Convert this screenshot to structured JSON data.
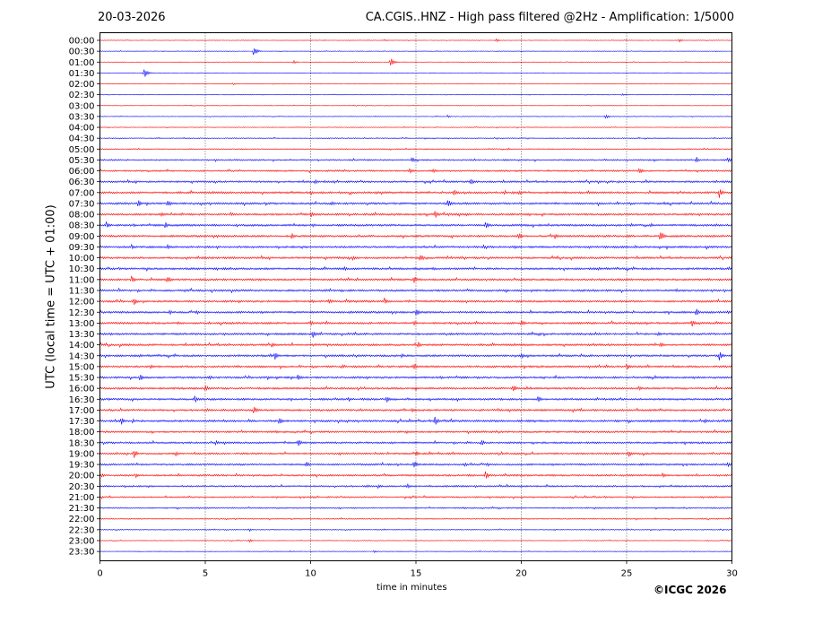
{
  "header": {
    "date": "20-03-2026",
    "title": "CA.CGIS..HNZ - High pass filtered @2Hz - Amplification: 1/5000"
  },
  "footer": {
    "copyright": "©ICGC 2026"
  },
  "chart_data": {
    "type": "line",
    "subtype": "helicorder",
    "xlabel": "time in minutes",
    "ylabel": "UTC (local time = UTC + 01:00)",
    "xlim": [
      0,
      30
    ],
    "x_ticks": [
      0,
      5,
      10,
      15,
      20,
      25,
      30
    ],
    "vertical_gridlines": [
      5,
      10,
      15,
      20,
      25
    ],
    "grid": "dotted vertical lines",
    "trace_colors": [
      "#ff0000",
      "#0000ff"
    ],
    "rows": [
      "00:00",
      "00:30",
      "01:00",
      "01:30",
      "02:00",
      "02:30",
      "03:00",
      "03:30",
      "04:00",
      "04:30",
      "05:00",
      "05:30",
      "06:00",
      "06:30",
      "07:00",
      "07:30",
      "08:00",
      "08:30",
      "09:00",
      "09:30",
      "10:00",
      "10:30",
      "11:00",
      "11:30",
      "12:00",
      "12:30",
      "13:00",
      "13:30",
      "14:00",
      "14:30",
      "15:00",
      "15:30",
      "16:00",
      "16:30",
      "17:00",
      "17:30",
      "18:00",
      "18:30",
      "19:00",
      "19:30",
      "20:00",
      "20:30",
      "21:00",
      "21:30",
      "22:00",
      "22:30",
      "23:00",
      "23:30"
    ],
    "noise_level": [
      0.3,
      0.3,
      0.3,
      0.3,
      0.3,
      0.3,
      0.3,
      0.35,
      0.4,
      0.5,
      0.6,
      0.8,
      0.9,
      1.0,
      1.1,
      1.1,
      1.1,
      1.1,
      1.1,
      1.1,
      1.1,
      1.1,
      1.1,
      1.1,
      1.1,
      1.1,
      1.1,
      1.1,
      1.1,
      1.1,
      1.1,
      1.1,
      1.1,
      1.1,
      1.1,
      1.1,
      1.0,
      1.0,
      1.0,
      1.0,
      1.0,
      0.9,
      0.8,
      0.7,
      0.6,
      0.5,
      0.4,
      0.4
    ],
    "events": [
      {
        "row": "00:00",
        "t": 18.8,
        "amp": 2
      },
      {
        "row": "00:00",
        "t": 27.5,
        "amp": 2
      },
      {
        "row": "00:00",
        "t": 13.5,
        "amp": 1.2
      },
      {
        "row": "00:30",
        "t": 7.3,
        "amp": 6
      },
      {
        "row": "01:00",
        "t": 13.8,
        "amp": 6
      },
      {
        "row": "01:00",
        "t": 9.2,
        "amp": 2
      },
      {
        "row": "01:30",
        "t": 2.1,
        "amp": 6
      },
      {
        "row": "02:00",
        "t": 6.3,
        "amp": 1.5
      },
      {
        "row": "02:30",
        "t": 24.8,
        "amp": 1.5
      },
      {
        "row": "03:30",
        "t": 24.0,
        "amp": 3
      },
      {
        "row": "03:30",
        "t": 16.5,
        "amp": 1.5
      },
      {
        "row": "05:30",
        "t": 14.8,
        "amp": 4
      },
      {
        "row": "05:30",
        "t": 28.3,
        "amp": 4
      },
      {
        "row": "05:30",
        "t": 29.8,
        "amp": 4
      },
      {
        "row": "06:00",
        "t": 14.7,
        "amp": 4
      },
      {
        "row": "06:00",
        "t": 25.6,
        "amp": 4
      },
      {
        "row": "06:00",
        "t": 15.8,
        "amp": 3
      },
      {
        "row": "06:30",
        "t": 17.6,
        "amp": 4
      },
      {
        "row": "06:30",
        "t": 10.2,
        "amp": 3
      },
      {
        "row": "07:00",
        "t": 16.8,
        "amp": 5
      },
      {
        "row": "07:00",
        "t": 29.4,
        "amp": 6
      },
      {
        "row": "07:00",
        "t": 10.0,
        "amp": 3
      },
      {
        "row": "07:00",
        "t": 19.9,
        "amp": 3
      },
      {
        "row": "07:30",
        "t": 1.8,
        "amp": 5
      },
      {
        "row": "07:30",
        "t": 3.2,
        "amp": 5
      },
      {
        "row": "07:30",
        "t": 16.5,
        "amp": 6
      },
      {
        "row": "07:30",
        "t": 11.0,
        "amp": 3
      },
      {
        "row": "08:00",
        "t": 15.9,
        "amp": 5
      },
      {
        "row": "08:00",
        "t": 10.0,
        "amp": 4
      },
      {
        "row": "08:00",
        "t": 6.2,
        "amp": 3
      },
      {
        "row": "08:00",
        "t": 2.9,
        "amp": 3
      },
      {
        "row": "08:30",
        "t": 18.3,
        "amp": 5
      },
      {
        "row": "08:30",
        "t": 0.3,
        "amp": 4
      },
      {
        "row": "08:30",
        "t": 3.1,
        "amp": 4
      },
      {
        "row": "08:30",
        "t": 10.1,
        "amp": 3
      },
      {
        "row": "09:00",
        "t": 26.6,
        "amp": 7
      },
      {
        "row": "09:00",
        "t": 21.6,
        "amp": 4
      },
      {
        "row": "09:00",
        "t": 9.1,
        "amp": 4
      },
      {
        "row": "09:00",
        "t": 19.9,
        "amp": 4
      },
      {
        "row": "09:30",
        "t": 1.5,
        "amp": 3
      },
      {
        "row": "09:30",
        "t": 18.2,
        "amp": 3
      },
      {
        "row": "09:30",
        "t": 3.2,
        "amp": 3
      },
      {
        "row": "10:00",
        "t": 15.2,
        "amp": 5
      },
      {
        "row": "10:00",
        "t": 12.0,
        "amp": 3
      },
      {
        "row": "10:30",
        "t": 15.8,
        "amp": 3
      },
      {
        "row": "10:30",
        "t": 11.6,
        "amp": 3
      },
      {
        "row": "11:00",
        "t": 1.5,
        "amp": 5
      },
      {
        "row": "11:00",
        "t": 3.2,
        "amp": 5
      },
      {
        "row": "11:00",
        "t": 14.9,
        "amp": 5
      },
      {
        "row": "12:00",
        "t": 1.6,
        "amp": 5
      },
      {
        "row": "12:00",
        "t": 13.5,
        "amp": 4
      },
      {
        "row": "12:00",
        "t": 10.9,
        "amp": 3
      },
      {
        "row": "12:30",
        "t": 15.0,
        "amp": 5
      },
      {
        "row": "12:30",
        "t": 28.3,
        "amp": 5
      },
      {
        "row": "12:30",
        "t": 3.3,
        "amp": 3
      },
      {
        "row": "12:30",
        "t": 29.8,
        "amp": 3
      },
      {
        "row": "13:00",
        "t": 20.0,
        "amp": 5
      },
      {
        "row": "13:00",
        "t": 28.1,
        "amp": 5
      },
      {
        "row": "13:00",
        "t": 14.9,
        "amp": 4
      },
      {
        "row": "13:00",
        "t": 10.0,
        "amp": 3
      },
      {
        "row": "13:30",
        "t": 10.1,
        "amp": 5
      },
      {
        "row": "13:30",
        "t": 26.5,
        "amp": 3
      },
      {
        "row": "14:00",
        "t": 15.1,
        "amp": 4
      },
      {
        "row": "14:00",
        "t": 26.6,
        "amp": 4
      },
      {
        "row": "14:00",
        "t": 8.2,
        "amp": 3
      },
      {
        "row": "14:30",
        "t": 29.4,
        "amp": 6
      },
      {
        "row": "14:30",
        "t": 8.3,
        "amp": 5
      },
      {
        "row": "14:30",
        "t": 20.0,
        "amp": 4
      },
      {
        "row": "14:30",
        "t": 14.3,
        "amp": 3
      },
      {
        "row": "15:00",
        "t": 14.9,
        "amp": 5
      },
      {
        "row": "15:00",
        "t": 25.0,
        "amp": 4
      },
      {
        "row": "15:00",
        "t": 2.4,
        "amp": 3
      },
      {
        "row": "15:00",
        "t": 11.5,
        "amp": 3
      },
      {
        "row": "15:30",
        "t": 1.9,
        "amp": 5
      },
      {
        "row": "15:30",
        "t": 9.4,
        "amp": 4
      },
      {
        "row": "15:30",
        "t": 5.2,
        "amp": 3
      },
      {
        "row": "16:00",
        "t": 19.6,
        "amp": 5
      },
      {
        "row": "16:00",
        "t": 5.0,
        "amp": 4
      },
      {
        "row": "16:00",
        "t": 25.6,
        "amp": 3
      },
      {
        "row": "16:30",
        "t": 4.5,
        "amp": 5
      },
      {
        "row": "16:30",
        "t": 13.6,
        "amp": 5
      },
      {
        "row": "16:30",
        "t": 20.8,
        "amp": 5
      },
      {
        "row": "16:30",
        "t": 11.8,
        "amp": 3
      },
      {
        "row": "17:00",
        "t": 7.3,
        "amp": 5
      },
      {
        "row": "17:00",
        "t": 14.8,
        "amp": 3
      },
      {
        "row": "17:30",
        "t": 1.0,
        "amp": 5
      },
      {
        "row": "17:30",
        "t": 8.5,
        "amp": 5
      },
      {
        "row": "17:30",
        "t": 15.9,
        "amp": 6
      },
      {
        "row": "17:30",
        "t": 28.7,
        "amp": 3
      },
      {
        "row": "18:30",
        "t": 9.4,
        "amp": 5
      },
      {
        "row": "18:30",
        "t": 18.1,
        "amp": 4
      },
      {
        "row": "18:30",
        "t": 5.5,
        "amp": 3
      },
      {
        "row": "19:00",
        "t": 1.6,
        "amp": 6
      },
      {
        "row": "19:00",
        "t": 15.0,
        "amp": 4
      },
      {
        "row": "19:00",
        "t": 25.1,
        "amp": 4
      },
      {
        "row": "19:00",
        "t": 3.6,
        "amp": 3
      },
      {
        "row": "19:30",
        "t": 14.9,
        "amp": 5
      },
      {
        "row": "19:30",
        "t": 9.8,
        "amp": 4
      },
      {
        "row": "19:30",
        "t": 17.3,
        "amp": 3
      },
      {
        "row": "19:30",
        "t": 29.8,
        "amp": 3
      },
      {
        "row": "20:00",
        "t": 18.3,
        "amp": 5
      },
      {
        "row": "20:00",
        "t": 26.7,
        "amp": 4
      },
      {
        "row": "20:00",
        "t": 1.7,
        "amp": 3
      },
      {
        "row": "20:00",
        "t": 0.1,
        "amp": 3
      },
      {
        "row": "20:30",
        "t": 14.6,
        "amp": 3
      },
      {
        "row": "20:30",
        "t": 13.2,
        "amp": 3
      },
      {
        "row": "22:30",
        "t": 7.1,
        "amp": 2
      },
      {
        "row": "23:00",
        "t": 7.1,
        "amp": 2
      },
      {
        "row": "23:30",
        "t": 13.0,
        "amp": 1.5
      }
    ]
  }
}
